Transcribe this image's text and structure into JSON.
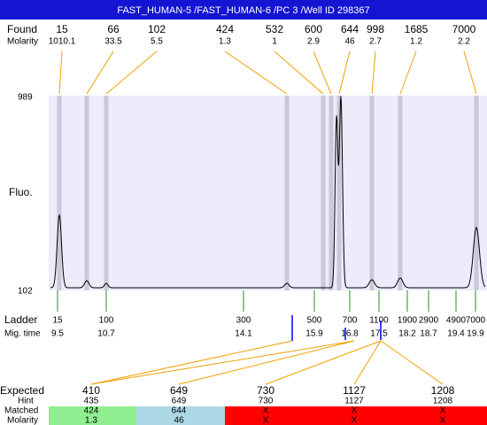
{
  "header": {
    "title": "FAST_HUMAN-5 /FAST_HUMAN-6 /PC 3 /Well ID 298367"
  },
  "found": {
    "label": "Found",
    "sublabel": "Molarity",
    "items": [
      {
        "size": 15,
        "molarity": 1010.1
      },
      {
        "size": 66,
        "molarity": 33.5
      },
      {
        "size": 102,
        "molarity": 5.5
      },
      {
        "size": 424,
        "molarity": 1.3
      },
      {
        "size": 532,
        "molarity": 1
      },
      {
        "size": 600,
        "molarity": 2.9
      },
      {
        "size": 644,
        "molarity": 46
      },
      {
        "size": 998,
        "molarity": 2.7
      },
      {
        "size": 1685,
        "molarity": 1.2
      },
      {
        "size": 7000,
        "molarity": 2.2
      }
    ]
  },
  "plot": {
    "axis_label": "Fluo.",
    "top_label": 989,
    "bottom_label": 102
  },
  "ladder": {
    "label": "Ladder",
    "sublabel": "Mig. time",
    "items": [
      {
        "size": 15,
        "time": 9.5
      },
      {
        "size": 100,
        "time": 10.7
      },
      {
        "size": 300,
        "time": 14.1
      },
      {
        "size": 500,
        "time": 15.9
      },
      {
        "size": 700,
        "time": 16.8
      },
      {
        "size": 1100,
        "time": 17.5
      },
      {
        "size": 1900,
        "time": 18.2
      },
      {
        "size": 2900,
        "time": 18.7
      },
      {
        "size": 4900,
        "time": 19.4
      },
      {
        "size": 7000,
        "time": 19.9
      }
    ]
  },
  "expected": {
    "labels": [
      "Expected",
      "Hint",
      "Matched",
      "Molarity"
    ],
    "items": [
      {
        "expected": 410,
        "hint": 435,
        "matched": 424,
        "molarity": 1.3
      },
      {
        "expected": 649,
        "hint": 649,
        "matched": 644,
        "molarity": 46
      },
      {
        "expected": 730,
        "hint": 730,
        "matched": "X",
        "molarity": "X"
      },
      {
        "expected": 1127,
        "hint": 1127,
        "matched": "X",
        "molarity": "X"
      },
      {
        "expected": 1208,
        "hint": 1208,
        "matched": "X",
        "molarity": "X"
      }
    ]
  }
}
